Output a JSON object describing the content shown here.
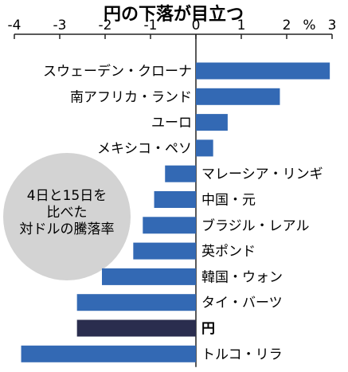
{
  "chart_data": {
    "type": "bar",
    "orientation": "horizontal",
    "title": "円の下落が目立つ",
    "unit": "%",
    "xlim": [
      -4,
      3
    ],
    "ticks": [
      -4,
      -3,
      -2,
      -1,
      0,
      1,
      2,
      3
    ],
    "tick_labels": [
      "-4",
      "-3",
      "-2",
      "-1",
      "0",
      "1",
      "2",
      "3"
    ],
    "categories": [
      "スウェーデン・クローナ",
      "南アフリカ・ランド",
      "ユーロ",
      "メキシコ・ペソ",
      "マレーシア・リンギ",
      "中国・元",
      "ブラジル・レアル",
      "英ポンド",
      "韓国・ウォン",
      "タイ・バーツ",
      "円",
      "トルコ・リラ"
    ],
    "values": [
      2.95,
      1.85,
      0.7,
      0.38,
      -0.68,
      -0.92,
      -1.17,
      -1.38,
      -2.07,
      -2.62,
      -2.62,
      -3.85
    ],
    "highlight_index": 10,
    "colors": {
      "bar": "#3369b4",
      "highlight": "#2a2d4e",
      "circle": "#d3d3d3"
    },
    "annotation": [
      "4日と15日を",
      "比べた",
      "対ドルの騰落率"
    ]
  }
}
